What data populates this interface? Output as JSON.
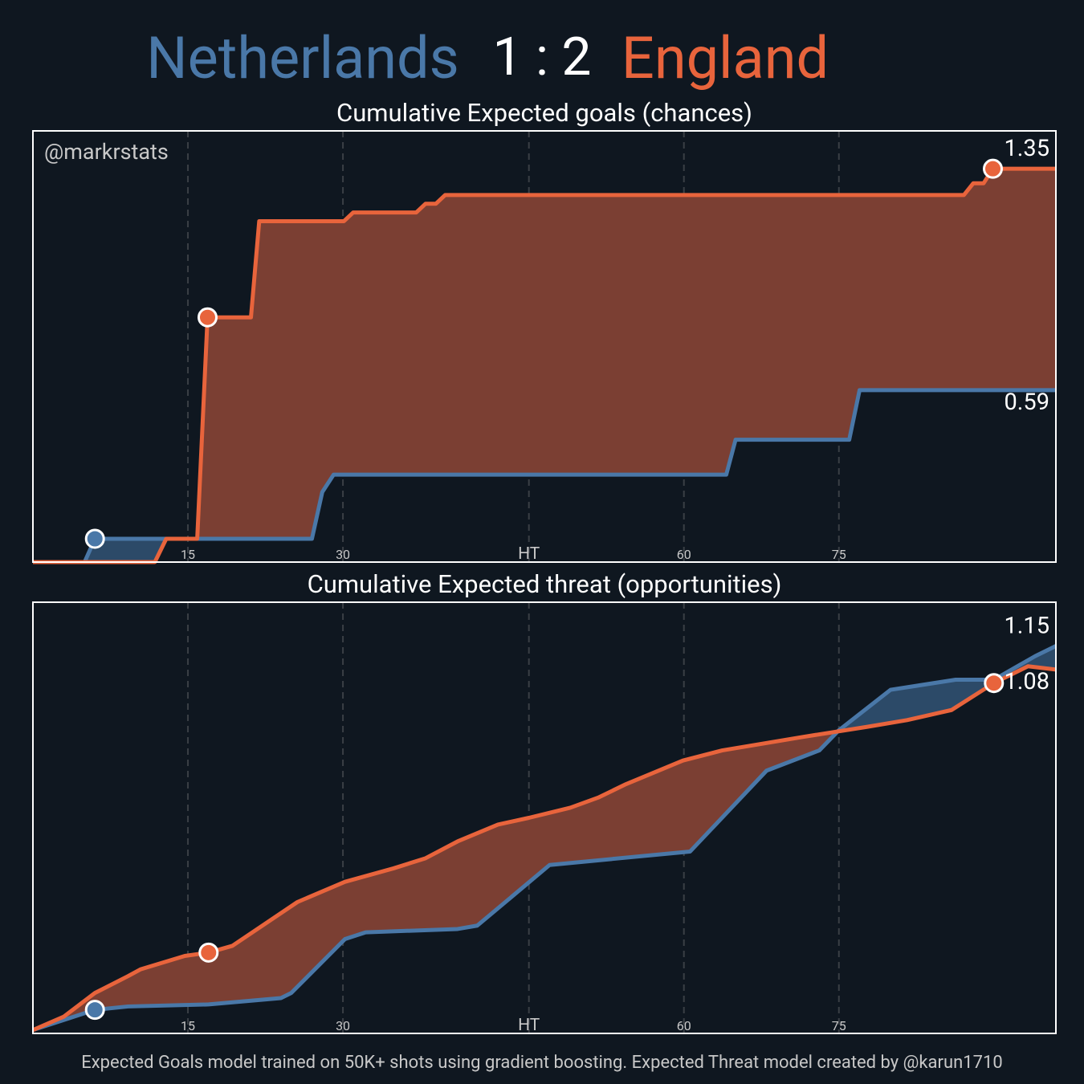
{
  "header": {
    "home": "Netherlands",
    "score": "1 : 2",
    "away": "England"
  },
  "footer": "Expected Goals model trained on 50K+ shots using gradient boosting. Expected Threat model created by @karun1710",
  "chart_data": [
    {
      "type": "line",
      "title": "Cumulative Expected goals (chances)",
      "watermark": "@markrstats",
      "xlim": [
        0,
        99
      ],
      "xticks": [
        15,
        30,
        {
          "value": 48,
          "label": "HT"
        },
        {
          "value": 63,
          "label": "60"
        },
        {
          "value": 78,
          "label": "75"
        }
      ],
      "ylim": [
        0,
        1.48
      ],
      "grid": true,
      "series": [
        {
          "color": "#4a78a8",
          "fill": "#2c4a68",
          "x": [
            0,
            5.0,
            6.0,
            27.0,
            28.0,
            29.1,
            67.1,
            68.0,
            79.0,
            80.0,
            99
          ],
          "values": [
            0,
            0,
            0.08,
            0.08,
            0.24,
            0.3,
            0.3,
            0.42,
            0.42,
            0.59,
            0.59
          ],
          "goals": [
            6.0
          ]
        },
        {
          "color": "#e8643c",
          "fill": "#7b3f33",
          "x": [
            0,
            11.8,
            12.9,
            15.9,
            16.9,
            21.1,
            21.9,
            30.1,
            31.0,
            37.1,
            38.0,
            39.0,
            39.9,
            90.1,
            91.0,
            92.0,
            92.9,
            99
          ],
          "values": [
            0,
            0,
            0.08,
            0.08,
            0.84,
            0.84,
            1.17,
            1.17,
            1.2,
            1.2,
            1.23,
            1.23,
            1.26,
            1.26,
            1.3,
            1.3,
            1.35,
            1.35
          ],
          "goals": [
            16.9,
            92.9
          ]
        }
      ]
    },
    {
      "type": "line",
      "title": "Cumulative Expected threat (opportunities)",
      "xlim": [
        0,
        99
      ],
      "xticks": [
        15,
        30,
        {
          "value": 48,
          "label": "HT"
        },
        {
          "value": 63,
          "label": "60"
        },
        {
          "value": 78,
          "label": "75"
        }
      ],
      "ylim": [
        0,
        1.28
      ],
      "grid": true,
      "series": [
        {
          "color": "#4a78a8",
          "fill": "#2c4a68",
          "x": [
            0,
            6,
            9.2,
            17,
            24,
            25,
            30.2,
            32.2,
            41.1,
            43,
            50,
            63.6,
            71,
            76.1,
            78,
            83,
            89.3,
            93,
            97,
            99
          ],
          "values": [
            0.01,
            0.07,
            0.08,
            0.086,
            0.105,
            0.12,
            0.28,
            0.3,
            0.31,
            0.32,
            0.5,
            0.54,
            0.78,
            0.84,
            0.9,
            1.02,
            1.05,
            1.05,
            1.12,
            1.15
          ],
          "goals": [
            6
          ]
        },
        {
          "color": "#e8643c",
          "fill": "#7b3f33",
          "x": [
            0,
            3,
            6,
            9.2,
            10.4,
            14.7,
            17,
            19.3,
            25.6,
            30.2,
            34.9,
            38,
            41.1,
            45,
            48,
            52,
            54.7,
            57.4,
            62.9,
            66.7,
            74.5,
            80.7,
            84.6,
            88.9,
            93,
            96.3,
            99
          ],
          "values": [
            0.01,
            0.05,
            0.12,
            0.17,
            0.19,
            0.23,
            0.24,
            0.26,
            0.39,
            0.45,
            0.49,
            0.52,
            0.57,
            0.62,
            0.64,
            0.67,
            0.7,
            0.74,
            0.81,
            0.84,
            0.88,
            0.91,
            0.93,
            0.96,
            1.04,
            1.09,
            1.08
          ],
          "goals": [
            17,
            93
          ]
        }
      ]
    }
  ]
}
